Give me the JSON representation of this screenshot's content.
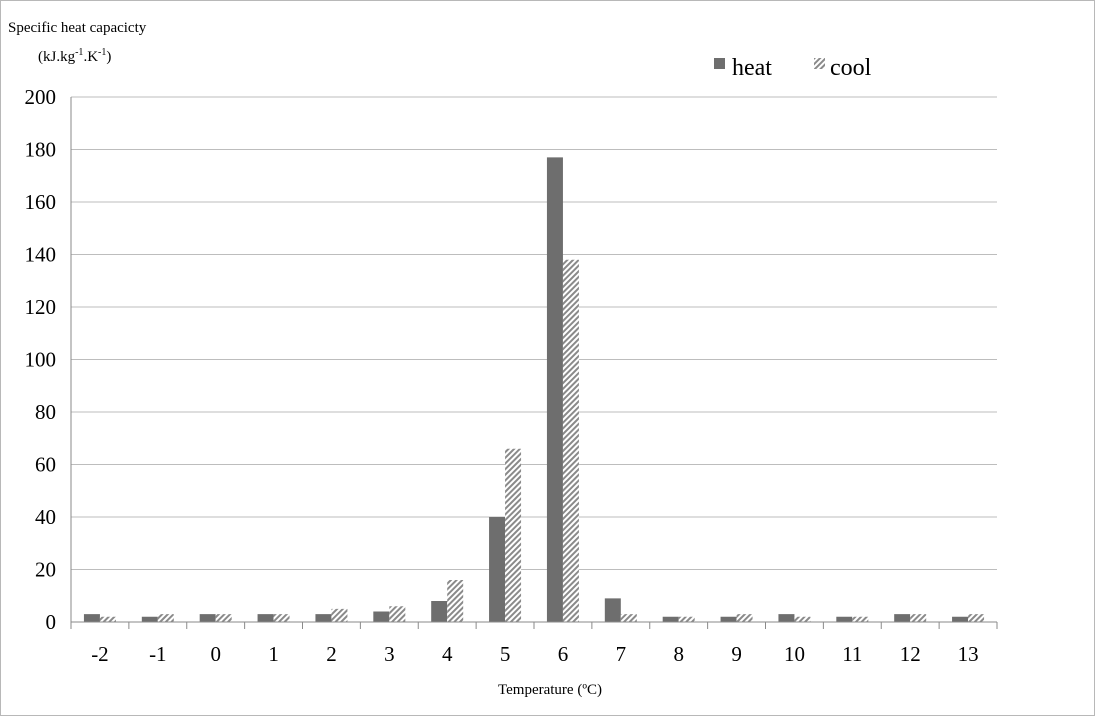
{
  "chart_data": {
    "type": "bar",
    "ylabel": "Specific heat capacicty",
    "yunit": {
      "open": "(kJ.kg",
      "exp1": "-1",
      "mid": ".K",
      "exp2": "-1",
      "close": ")"
    },
    "xlabel": "Temperature (ºC)",
    "categories": [
      "-2",
      "-1",
      "0",
      "1",
      "2",
      "3",
      "4",
      "5",
      "6",
      "7",
      "8",
      "9",
      "10",
      "11",
      "12",
      "13"
    ],
    "series": [
      {
        "name": "heat",
        "values": [
          3,
          2,
          3,
          3,
          3,
          4,
          8,
          40,
          177,
          9,
          2,
          2,
          3,
          2,
          3,
          2
        ],
        "color": "#6e6e6e",
        "pattern": "solid"
      },
      {
        "name": "cool",
        "values": [
          2,
          3,
          3,
          3,
          5,
          6,
          16,
          66,
          138,
          3,
          2,
          3,
          2,
          2,
          3,
          3
        ],
        "color": "#8a8a8a",
        "pattern": "hatched"
      }
    ],
    "yticks": [
      0,
      20,
      40,
      60,
      80,
      100,
      120,
      140,
      160,
      180,
      200
    ],
    "ylim": [
      0,
      200
    ],
    "grid": true,
    "legend_position": "top-right"
  }
}
